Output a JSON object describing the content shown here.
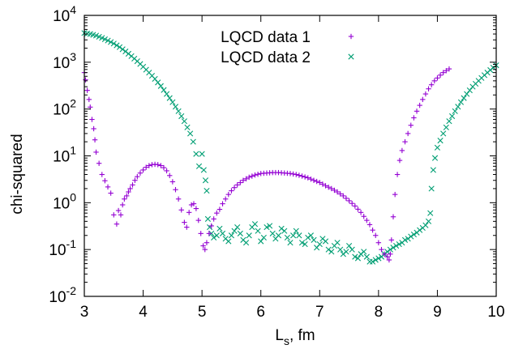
{
  "chart_data": {
    "type": "scatter",
    "title": "",
    "xlabel": "L",
    "xlabel_sub": "s",
    "xlabel_rest": ", fm",
    "ylabel": "chi-squared",
    "xlim": [
      3,
      10
    ],
    "ylim": [
      0.01,
      10000
    ],
    "yscale": "log",
    "grid": false,
    "legend_position": "top-center",
    "x_ticks": [
      3,
      4,
      5,
      6,
      7,
      8,
      9,
      10
    ],
    "x_tick_labels": [
      "3",
      "4",
      "5",
      "6",
      "7",
      "8",
      "9",
      "10"
    ],
    "y_ticks": [
      0.01,
      0.1,
      1,
      10,
      100,
      1000,
      10000
    ],
    "y_tick_labels": [
      {
        "base": "10",
        "exp": "-2"
      },
      {
        "base": "10",
        "exp": "-1"
      },
      {
        "base": "10",
        "exp": "0"
      },
      {
        "base": "10",
        "exp": "1"
      },
      {
        "base": "10",
        "exp": "2"
      },
      {
        "base": "10",
        "exp": "3"
      },
      {
        "base": "10",
        "exp": "4"
      }
    ],
    "series": [
      {
        "name": "LQCD data 1",
        "marker": "plus",
        "color": "#9400d3",
        "points": [
          [
            3.0,
            600
          ],
          [
            3.02,
            420
          ],
          [
            3.05,
            250
          ],
          [
            3.08,
            160
          ],
          [
            3.1,
            110
          ],
          [
            3.13,
            60
          ],
          [
            3.16,
            38
          ],
          [
            3.18,
            22
          ],
          [
            3.2,
            12
          ],
          [
            3.3,
            4.0
          ],
          [
            3.45,
            1.6
          ],
          [
            3.5,
            0.55
          ],
          [
            3.55,
            0.35
          ],
          [
            3.58,
            0.68
          ],
          [
            3.62,
            0.55
          ],
          [
            3.65,
            0.9
          ],
          [
            3.68,
            1.2
          ],
          [
            3.72,
            1.4
          ],
          [
            3.75,
            1.7
          ],
          [
            3.78,
            2.0
          ],
          [
            3.82,
            2.4
          ],
          [
            3.86,
            3.0
          ],
          [
            3.9,
            3.6
          ],
          [
            3.95,
            4.3
          ],
          [
            4.0,
            5.0
          ],
          [
            4.05,
            5.7
          ],
          [
            4.1,
            6.2
          ],
          [
            4.15,
            6.5
          ],
          [
            4.2,
            6.6
          ],
          [
            4.25,
            6.5
          ],
          [
            4.3,
            6.2
          ],
          [
            4.35,
            5.6
          ],
          [
            4.4,
            4.8
          ],
          [
            4.45,
            3.8
          ],
          [
            4.5,
            2.8
          ],
          [
            4.55,
            1.9
          ],
          [
            4.6,
            1.2
          ],
          [
            4.65,
            0.7
          ],
          [
            4.7,
            0.38
          ],
          [
            4.74,
            0.3
          ],
          [
            4.78,
            0.62
          ],
          [
            4.82,
            0.9
          ],
          [
            4.86,
            0.95
          ],
          [
            4.9,
            0.75
          ],
          [
            4.94,
            0.42
          ],
          [
            4.98,
            0.22
          ],
          [
            5.02,
            0.12
          ],
          [
            5.05,
            0.1
          ],
          [
            5.08,
            0.14
          ],
          [
            5.12,
            0.22
          ],
          [
            5.16,
            0.32
          ],
          [
            5.2,
            0.45
          ],
          [
            5.25,
            0.6
          ],
          [
            5.3,
            0.72
          ],
          [
            5.35,
            0.95
          ],
          [
            5.4,
            1.2
          ],
          [
            5.45,
            1.5
          ],
          [
            5.5,
            1.8
          ],
          [
            5.55,
            2.1
          ],
          [
            5.6,
            2.4
          ],
          [
            5.7,
            3.0
          ],
          [
            5.8,
            3.5
          ],
          [
            5.9,
            3.9
          ],
          [
            6.0,
            4.2
          ],
          [
            6.1,
            4.3
          ],
          [
            6.2,
            4.4
          ],
          [
            6.3,
            4.4
          ],
          [
            6.4,
            4.3
          ],
          [
            6.5,
            4.2
          ],
          [
            6.6,
            4.0
          ],
          [
            6.7,
            3.7
          ],
          [
            6.8,
            3.4
          ],
          [
            6.9,
            3.0
          ],
          [
            7.0,
            2.7
          ],
          [
            7.1,
            2.3
          ],
          [
            7.2,
            2.0
          ],
          [
            7.3,
            1.7
          ],
          [
            7.4,
            1.4
          ],
          [
            7.5,
            1.1
          ],
          [
            7.6,
            0.85
          ],
          [
            7.7,
            0.62
          ],
          [
            7.8,
            0.42
          ],
          [
            7.85,
            0.34
          ],
          [
            7.9,
            0.26
          ],
          [
            7.95,
            0.2
          ],
          [
            8.0,
            0.14
          ],
          [
            8.05,
            0.1
          ],
          [
            8.1,
            0.08
          ],
          [
            8.15,
            0.07
          ],
          [
            8.18,
            0.06
          ],
          [
            8.2,
            0.08
          ],
          [
            8.22,
            0.16
          ],
          [
            8.25,
            0.5
          ],
          [
            8.28,
            1.5
          ],
          [
            8.32,
            4.0
          ],
          [
            8.36,
            8.0
          ],
          [
            8.4,
            13
          ],
          [
            8.45,
            20
          ],
          [
            8.5,
            30
          ],
          [
            8.55,
            45
          ],
          [
            8.6,
            65
          ],
          [
            8.65,
            90
          ],
          [
            8.7,
            120
          ],
          [
            8.75,
            160
          ],
          [
            8.8,
            210
          ],
          [
            8.85,
            270
          ],
          [
            8.9,
            330
          ],
          [
            8.95,
            400
          ],
          [
            9.0,
            460
          ],
          [
            9.05,
            530
          ],
          [
            9.1,
            600
          ],
          [
            9.15,
            660
          ],
          [
            9.2,
            720
          ]
        ]
      },
      {
        "name": "LQCD data 2",
        "marker": "cross",
        "color": "#009e73",
        "points": [
          [
            3.0,
            4200
          ],
          [
            3.1,
            4000
          ],
          [
            3.2,
            3700
          ],
          [
            3.3,
            3300
          ],
          [
            3.4,
            2900
          ],
          [
            3.5,
            2500
          ],
          [
            3.6,
            2100
          ],
          [
            3.7,
            1700
          ],
          [
            3.8,
            1350
          ],
          [
            3.9,
            1050
          ],
          [
            4.0,
            800
          ],
          [
            4.1,
            600
          ],
          [
            4.2,
            440
          ],
          [
            4.3,
            310
          ],
          [
            4.4,
            210
          ],
          [
            4.5,
            140
          ],
          [
            4.6,
            90
          ],
          [
            4.7,
            55
          ],
          [
            4.8,
            30
          ],
          [
            4.85,
            20
          ],
          [
            4.9,
            11
          ],
          [
            4.95,
            6
          ],
          [
            5.0,
            11
          ],
          [
            5.03,
            5
          ],
          [
            5.06,
            3.0
          ],
          [
            5.08,
            1.8
          ],
          [
            5.1,
            0.45
          ],
          [
            5.13,
            0.3
          ],
          [
            5.16,
            0.22
          ],
          [
            5.2,
            0.18
          ],
          [
            5.25,
            0.2
          ],
          [
            5.3,
            0.28
          ],
          [
            5.35,
            0.22
          ],
          [
            5.4,
            0.17
          ],
          [
            5.45,
            0.15
          ],
          [
            5.5,
            0.2
          ],
          [
            5.55,
            0.25
          ],
          [
            5.6,
            0.3
          ],
          [
            5.65,
            0.22
          ],
          [
            5.7,
            0.16
          ],
          [
            5.75,
            0.14
          ],
          [
            5.8,
            0.2
          ],
          [
            5.85,
            0.3
          ],
          [
            5.9,
            0.35
          ],
          [
            5.95,
            0.25
          ],
          [
            6.0,
            0.15
          ],
          [
            6.05,
            0.18
          ],
          [
            6.1,
            0.3
          ],
          [
            6.15,
            0.32
          ],
          [
            6.2,
            0.22
          ],
          [
            6.25,
            0.17
          ],
          [
            6.3,
            0.2
          ],
          [
            6.35,
            0.28
          ],
          [
            6.4,
            0.25
          ],
          [
            6.45,
            0.18
          ],
          [
            6.5,
            0.14
          ],
          [
            6.55,
            0.2
          ],
          [
            6.6,
            0.25
          ],
          [
            6.65,
            0.2
          ],
          [
            6.7,
            0.14
          ],
          [
            6.75,
            0.13
          ],
          [
            6.8,
            0.18
          ],
          [
            6.85,
            0.2
          ],
          [
            6.9,
            0.16
          ],
          [
            6.95,
            0.11
          ],
          [
            7.0,
            0.13
          ],
          [
            7.05,
            0.17
          ],
          [
            7.1,
            0.15
          ],
          [
            7.15,
            0.1
          ],
          [
            7.2,
            0.09
          ],
          [
            7.25,
            0.12
          ],
          [
            7.3,
            0.14
          ],
          [
            7.35,
            0.1
          ],
          [
            7.4,
            0.08
          ],
          [
            7.45,
            0.09
          ],
          [
            7.5,
            0.12
          ],
          [
            7.55,
            0.1
          ],
          [
            7.6,
            0.07
          ],
          [
            7.65,
            0.065
          ],
          [
            7.7,
            0.08
          ],
          [
            7.75,
            0.09
          ],
          [
            7.8,
            0.07
          ],
          [
            7.85,
            0.055
          ],
          [
            7.9,
            0.055
          ],
          [
            7.95,
            0.06
          ],
          [
            8.0,
            0.065
          ],
          [
            8.05,
            0.07
          ],
          [
            8.1,
            0.08
          ],
          [
            8.15,
            0.09
          ],
          [
            8.2,
            0.1
          ],
          [
            8.25,
            0.11
          ],
          [
            8.3,
            0.12
          ],
          [
            8.35,
            0.13
          ],
          [
            8.4,
            0.14
          ],
          [
            8.45,
            0.16
          ],
          [
            8.5,
            0.17
          ],
          [
            8.55,
            0.19
          ],
          [
            8.6,
            0.21
          ],
          [
            8.65,
            0.23
          ],
          [
            8.7,
            0.26
          ],
          [
            8.75,
            0.29
          ],
          [
            8.8,
            0.33
          ],
          [
            8.85,
            0.4
          ],
          [
            8.88,
            0.6
          ],
          [
            8.9,
            2.0
          ],
          [
            8.93,
            5.0
          ],
          [
            8.96,
            9.0
          ],
          [
            9.0,
            15
          ],
          [
            9.1,
            30
          ],
          [
            9.2,
            55
          ],
          [
            9.3,
            90
          ],
          [
            9.4,
            140
          ],
          [
            9.5,
            210
          ],
          [
            9.6,
            300
          ],
          [
            9.7,
            400
          ],
          [
            9.8,
            530
          ],
          [
            9.9,
            680
          ],
          [
            10.0,
            860
          ]
        ]
      }
    ]
  }
}
